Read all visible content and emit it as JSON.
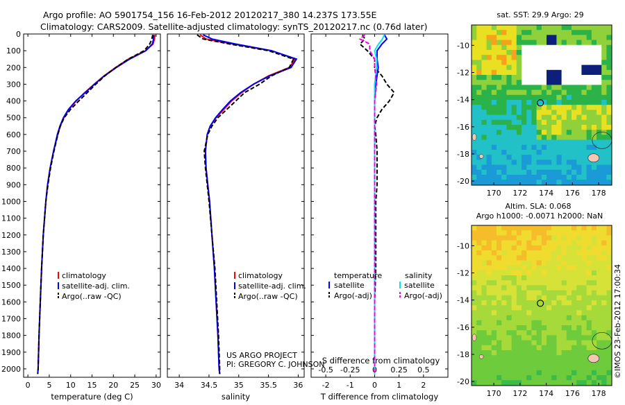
{
  "header": {
    "title_line1": "Argo profile: AO 5901754_156 16-Feb-2012 20120217_380 14.237S 173.55E",
    "title_line2": "Climatology: CARS2009. Satellite-adjusted climatology: synTS_20120217.nc (0.76d later)"
  },
  "credits": {
    "project": "US ARGO PROJECT",
    "pi": "PI: GREGORY C. JOHNSON",
    "stamp": "©IMOS 23-Feb-2012 17:00:34"
  },
  "colors": {
    "climatology": "#ff0000",
    "satellite": "#0000ff",
    "argo": "#000000",
    "sal_satellite": "#00e5ee",
    "sal_argo": "#ee00ee"
  },
  "chart_data": [
    {
      "id": "temperature",
      "type": "line",
      "xlabel": "temperature (deg C)",
      "ylim": [
        2050,
        0
      ],
      "xlim": [
        -1,
        31
      ],
      "xticks": [
        0,
        5,
        10,
        15,
        20,
        25,
        30
      ],
      "yticks": [
        0,
        100,
        200,
        300,
        400,
        500,
        600,
        700,
        800,
        900,
        1000,
        1100,
        1200,
        1300,
        1400,
        1500,
        1600,
        1700,
        1800,
        1900,
        2000
      ],
      "legend": [
        "climatology",
        "satellite-adj. clim.",
        "Argo(..raw -QC)"
      ],
      "series": [
        {
          "name": "climatology",
          "color": "#ff0000",
          "dash": "",
          "depth": [
            5,
            30,
            60,
            100,
            150,
            200,
            250,
            300,
            350,
            400,
            450,
            500,
            550,
            600,
            700,
            800,
            900,
            1000,
            1200,
            1400,
            1600,
            1800,
            2000,
            2030
          ],
          "values": [
            29.7,
            29.6,
            29.3,
            27.5,
            23.5,
            20.5,
            17.8,
            15.5,
            13.3,
            11.3,
            9.6,
            8.4,
            7.6,
            7.0,
            6.0,
            5.2,
            4.6,
            4.2,
            3.6,
            3.2,
            2.9,
            2.6,
            2.4,
            2.3
          ]
        },
        {
          "name": "satellite-adj. clim.",
          "color": "#0000ff",
          "dash": "",
          "depth": [
            5,
            30,
            60,
            100,
            150,
            200,
            250,
            300,
            350,
            400,
            450,
            500,
            550,
            600,
            700,
            800,
            900,
            1000,
            1200,
            1400,
            1600,
            1800,
            2000,
            2030
          ],
          "values": [
            29.4,
            29.4,
            29.1,
            27.6,
            23.8,
            20.7,
            17.9,
            15.6,
            13.4,
            11.2,
            9.5,
            8.3,
            7.5,
            6.9,
            6.0,
            5.2,
            4.6,
            4.2,
            3.6,
            3.2,
            2.9,
            2.6,
            2.4,
            2.3
          ]
        },
        {
          "name": "Argo(..raw -QC)",
          "color": "#000000",
          "dash": "6,3",
          "depth": [
            5,
            30,
            60,
            100,
            150,
            200,
            250,
            300,
            350,
            400,
            450,
            500,
            550,
            600,
            700,
            800,
            900,
            1000,
            1200,
            1400,
            1600,
            1800,
            2000,
            2030
          ],
          "values": [
            29.2,
            29.0,
            28.5,
            27.2,
            23.5,
            20.6,
            18.0,
            15.9,
            13.9,
            11.9,
            10.0,
            8.5,
            7.6,
            7.0,
            6.1,
            5.3,
            4.7,
            4.2,
            3.6,
            3.2,
            2.9,
            2.6,
            2.4,
            2.3
          ]
        }
      ]
    },
    {
      "id": "salinity",
      "type": "line",
      "xlabel": "salinity",
      "ylim": [
        2050,
        0
      ],
      "xlim": [
        33.8,
        36.1
      ],
      "xticks": [
        34,
        34.5,
        35,
        35.5,
        36
      ],
      "legend": [
        "climatology",
        "satellite-adj. clim.",
        "Argo(..raw -QC)"
      ],
      "series": [
        {
          "name": "climatology",
          "color": "#ff0000",
          "dash": "",
          "depth": [
            5,
            30,
            60,
            100,
            150,
            200,
            250,
            300,
            350,
            400,
            450,
            500,
            550,
            600,
            700,
            800,
            900,
            1000,
            1200,
            1400,
            1600,
            1800,
            2000,
            2030
          ],
          "values": [
            34.35,
            34.45,
            34.9,
            35.55,
            35.95,
            35.85,
            35.5,
            35.25,
            35.05,
            34.88,
            34.75,
            34.62,
            34.52,
            34.47,
            34.44,
            34.45,
            34.48,
            34.51,
            34.55,
            34.59,
            34.62,
            34.65,
            34.67,
            34.68
          ]
        },
        {
          "name": "satellite-adj. clim.",
          "color": "#0000ff",
          "dash": "",
          "depth": [
            5,
            30,
            60,
            100,
            150,
            200,
            250,
            300,
            350,
            400,
            450,
            500,
            550,
            600,
            700,
            800,
            900,
            1000,
            1200,
            1400,
            1600,
            1800,
            2000,
            2030
          ],
          "values": [
            34.4,
            34.55,
            34.95,
            35.55,
            35.97,
            35.88,
            35.52,
            35.25,
            35.03,
            34.86,
            34.73,
            34.61,
            34.52,
            34.47,
            34.44,
            34.45,
            34.48,
            34.51,
            34.55,
            34.59,
            34.62,
            34.65,
            34.67,
            34.68
          ]
        },
        {
          "name": "Argo(..raw -QC)",
          "color": "#000000",
          "dash": "6,3",
          "depth": [
            5,
            30,
            60,
            100,
            150,
            200,
            250,
            300,
            350,
            400,
            450,
            500,
            550,
            600,
            700,
            800,
            900,
            1000,
            1200,
            1400,
            1600,
            1800,
            2000,
            2030
          ],
          "values": [
            34.3,
            34.4,
            34.85,
            35.5,
            35.92,
            35.85,
            35.55,
            35.35,
            35.1,
            34.95,
            34.8,
            34.65,
            34.55,
            34.48,
            34.42,
            34.44,
            34.47,
            34.5,
            34.55,
            34.6,
            34.63,
            34.66,
            34.68,
            34.68
          ]
        }
      ]
    },
    {
      "id": "differences",
      "type": "line",
      "xlabel": "T difference from climatology",
      "xlabel_top": "S difference from climatology",
      "ylim": [
        2050,
        0
      ],
      "xlim_T": [
        -2.6,
        3.0
      ],
      "xticks_T": [
        -2,
        -1,
        0,
        1,
        2
      ],
      "xticks_S": [
        "-0.5",
        "-0.25",
        "0",
        "0.25",
        "0.5"
      ],
      "xticks_S_values": [
        -0.5,
        -0.25,
        0,
        0.25,
        0.5
      ],
      "S_scale": 4,
      "legend_temperature_header": "temperature",
      "legend_salinity_header": "salinity",
      "legend_temperature": [
        "satellite",
        "Argo(-adj)"
      ],
      "legend_salinity": [
        "satellite",
        "Argo(-adj)"
      ],
      "series": [
        {
          "name": "T satellite",
          "color": "#0000ff",
          "dash": "",
          "depth": [
            5,
            30,
            60,
            100,
            150,
            200,
            300,
            400,
            500,
            600,
            800,
            1000,
            1200,
            1500,
            1800,
            2030
          ],
          "values": [
            0.4,
            0.5,
            0.3,
            0.1,
            0.1,
            0.15,
            0.05,
            0.0,
            0.0,
            0.0,
            0.0,
            0.0,
            0.0,
            0.0,
            0.0,
            0.0
          ]
        },
        {
          "name": "T Argo(-adj)",
          "color": "#000000",
          "dash": "6,3",
          "depth": [
            5,
            30,
            60,
            100,
            150,
            200,
            250,
            300,
            350,
            400,
            450,
            500,
            550,
            600,
            700,
            800,
            900,
            1000,
            1200,
            1400,
            1600,
            1800,
            2000,
            2030
          ],
          "values": [
            -0.5,
            -0.4,
            -0.6,
            -0.3,
            0.0,
            0.0,
            0.3,
            0.5,
            0.8,
            0.6,
            0.3,
            0.1,
            0.0,
            0.05,
            0.1,
            0.1,
            0.1,
            0.05,
            0.05,
            0.05,
            0.0,
            0.0,
            0.0,
            0.0
          ]
        },
        {
          "name": "S satellite",
          "color": "#00e5ee",
          "dash": "",
          "depth": [
            5,
            30,
            60,
            100,
            150,
            200,
            300,
            400,
            500,
            600,
            800,
            1000,
            1200,
            1500,
            1800,
            2030
          ],
          "values": [
            0.1,
            0.08,
            0.04,
            0.0,
            0.02,
            0.02,
            0.0,
            0.0,
            0.0,
            0.0,
            0.0,
            0.0,
            0.0,
            0.0,
            0.0,
            0.0
          ]
        },
        {
          "name": "S Argo(-adj)",
          "color": "#ee00ee",
          "dash": "6,3",
          "depth": [
            5,
            30,
            60,
            100,
            150,
            200,
            300,
            400,
            500,
            600,
            800,
            1000,
            1200,
            1500,
            1800,
            2030
          ],
          "values": [
            -0.1,
            -0.15,
            -0.05,
            -0.05,
            0.0,
            0.0,
            0.02,
            0.0,
            0.0,
            0.0,
            0.0,
            0.0,
            0.0,
            0.0,
            0.0,
            0.0
          ]
        }
      ]
    },
    {
      "id": "sst_map",
      "type": "heatmap",
      "title": "sat. SST: 29.9 Argo: 29",
      "xticks": [
        170,
        172,
        174,
        176,
        178
      ],
      "yticks": [
        -10,
        -12,
        -14,
        -16,
        -18,
        -20
      ],
      "xlim": [
        168.3,
        179.0
      ],
      "ylim": [
        -20.3,
        -8.5
      ],
      "argo_lon": 173.55,
      "argo_lat": -14.237
    },
    {
      "id": "sla_map",
      "type": "heatmap",
      "title_line1": "Altim. SLA: 0.068",
      "title_line2": "Argo h1000: -0.0071 h2000: NaN",
      "xticks": [
        170,
        172,
        174,
        176,
        178
      ],
      "yticks": [
        -10,
        -12,
        -14,
        -16,
        -18,
        -20
      ],
      "xlim": [
        168.3,
        179.0
      ],
      "ylim": [
        -20.3,
        -8.5
      ],
      "argo_lon": 173.55,
      "argo_lat": -14.237
    }
  ]
}
